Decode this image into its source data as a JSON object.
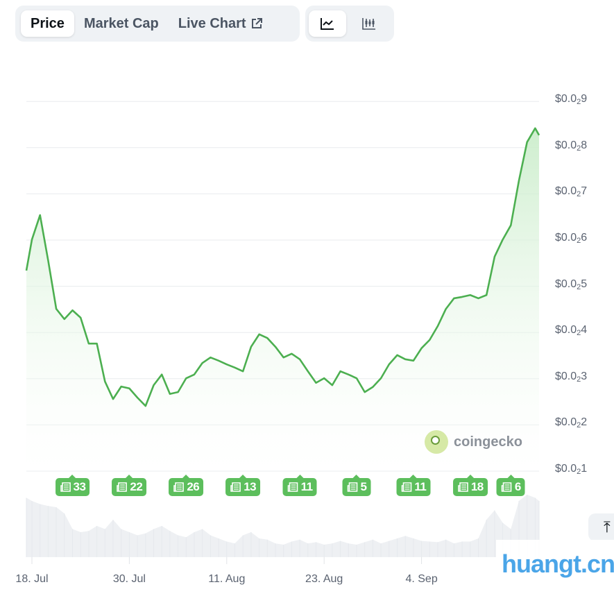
{
  "tabs": [
    {
      "label": "Price",
      "active": true
    },
    {
      "label": "Market Cap",
      "active": false
    },
    {
      "label": "Live Chart",
      "active": false,
      "icon": "external-link-icon"
    }
  ],
  "chart_types": [
    {
      "icon": "line-chart-icon",
      "active": true
    },
    {
      "icon": "candlestick-chart-icon",
      "active": false
    }
  ],
  "watermark_brand": "coingecko",
  "site_watermark": "huangt.cn",
  "scroll_top_icon": "arrow-up-to-line-icon",
  "colors": {
    "line": "#4caf50",
    "fill_top": "#c8ecc8",
    "badge": "#5cbe5c",
    "grid": "#e8ebee"
  },
  "chart_data": {
    "type": "area",
    "y_unit_note_displayed_as": "$0.0₂N",
    "ylim": [
      0.001,
      0.009
    ],
    "y_ticks": [
      {
        "prefix": "$0.0",
        "sub": "2",
        "digit": "9",
        "value": 0.009
      },
      {
        "prefix": "$0.0",
        "sub": "2",
        "digit": "8",
        "value": 0.008
      },
      {
        "prefix": "$0.0",
        "sub": "2",
        "digit": "7",
        "value": 0.007
      },
      {
        "prefix": "$0.0",
        "sub": "2",
        "digit": "6",
        "value": 0.006
      },
      {
        "prefix": "$0.0",
        "sub": "2",
        "digit": "5",
        "value": 0.005
      },
      {
        "prefix": "$0.0",
        "sub": "2",
        "digit": "4",
        "value": 0.004
      },
      {
        "prefix": "$0.0",
        "sub": "2",
        "digit": "3",
        "value": 0.003
      },
      {
        "prefix": "$0.0",
        "sub": "2",
        "digit": "2",
        "value": 0.002
      },
      {
        "prefix": "$0.0",
        "sub": "2",
        "digit": "1",
        "value": 0.001
      }
    ],
    "x_ticks": [
      {
        "label": "18. Jul",
        "date": "Jul 18"
      },
      {
        "label": "30. Jul",
        "date": "Jul 30"
      },
      {
        "label": "11. Aug",
        "date": "Aug 11"
      },
      {
        "label": "23. Aug",
        "date": "Aug 23"
      },
      {
        "label": "4. Sep",
        "date": "Sep 4"
      }
    ],
    "grid": true,
    "dates": [
      "Jul 17",
      "Jul 18",
      "Jul 19",
      "Jul 20",
      "Jul 21",
      "Jul 22",
      "Jul 23",
      "Jul 24",
      "Jul 25",
      "Jul 26",
      "Jul 27",
      "Jul 28",
      "Jul 29",
      "Jul 30",
      "Jul 31",
      "Aug 1",
      "Aug 2",
      "Aug 3",
      "Aug 4",
      "Aug 5",
      "Aug 6",
      "Aug 7",
      "Aug 8",
      "Aug 9",
      "Aug 10",
      "Aug 11",
      "Aug 12",
      "Aug 13",
      "Aug 14",
      "Aug 15",
      "Aug 16",
      "Aug 17",
      "Aug 18",
      "Aug 19",
      "Aug 20",
      "Aug 21",
      "Aug 22",
      "Aug 23",
      "Aug 24",
      "Aug 25",
      "Aug 26",
      "Aug 27",
      "Aug 28",
      "Aug 29",
      "Aug 30",
      "Aug 31",
      "Sep 1",
      "Sep 2",
      "Sep 3",
      "Sep 4",
      "Sep 5",
      "Sep 6",
      "Sep 7",
      "Sep 8",
      "Sep 9",
      "Sep 10",
      "Sep 11",
      "Sep 12",
      "Sep 13",
      "Sep 14",
      "Sep 15",
      "Sep 16",
      "Sep 17",
      "Sep 18",
      "Sep 19"
    ],
    "price": [
      0.00534,
      0.00601,
      0.00654,
      0.00556,
      0.00451,
      0.00429,
      0.00448,
      0.00432,
      0.00376,
      0.00376,
      0.00294,
      0.00256,
      0.00283,
      0.00279,
      0.00259,
      0.00241,
      0.00286,
      0.00309,
      0.00267,
      0.00271,
      0.00301,
      0.00309,
      0.00334,
      0.00346,
      0.00339,
      0.00331,
      0.00324,
      0.00316,
      0.00369,
      0.00396,
      0.00388,
      0.00369,
      0.00346,
      0.00354,
      0.00342,
      0.00316,
      0.00291,
      0.00301,
      0.00286,
      0.00316,
      0.00309,
      0.00301,
      0.00271,
      0.00282,
      0.00301,
      0.00331,
      0.00351,
      0.00342,
      0.00339,
      0.00366,
      0.00384,
      0.00414,
      0.00451,
      0.00474,
      0.00477,
      0.00481,
      0.00474,
      0.00481,
      0.00564,
      0.00601,
      0.00632,
      0.00729,
      0.00812,
      0.00842,
      0.00827
    ],
    "volume_relative": [
      0.95,
      0.9,
      0.85,
      0.82,
      0.8,
      0.7,
      0.45,
      0.4,
      0.42,
      0.5,
      0.45,
      0.6,
      0.45,
      0.4,
      0.35,
      0.38,
      0.45,
      0.5,
      0.42,
      0.35,
      0.32,
      0.4,
      0.45,
      0.35,
      0.3,
      0.25,
      0.22,
      0.35,
      0.4,
      0.3,
      0.28,
      0.22,
      0.2,
      0.25,
      0.28,
      0.22,
      0.24,
      0.2,
      0.22,
      0.26,
      0.22,
      0.2,
      0.24,
      0.28,
      0.22,
      0.26,
      0.3,
      0.34,
      0.3,
      0.26,
      0.25,
      0.24,
      0.28,
      0.22,
      0.25,
      0.25,
      0.3,
      0.6,
      0.75,
      0.55,
      0.45,
      0.9,
      1.0,
      0.95,
      0.9
    ],
    "news_badges": [
      {
        "count": "33",
        "date": "Jul 23"
      },
      {
        "count": "22",
        "date": "Jul 30"
      },
      {
        "count": "26",
        "date": "Aug 6"
      },
      {
        "count": "13",
        "date": "Aug 13"
      },
      {
        "count": "11",
        "date": "Aug 20"
      },
      {
        "count": "5",
        "date": "Aug 27"
      },
      {
        "count": "11",
        "date": "Sep 3"
      },
      {
        "count": "18",
        "date": "Sep 10"
      },
      {
        "count": "6",
        "date": "Sep 15"
      }
    ]
  }
}
